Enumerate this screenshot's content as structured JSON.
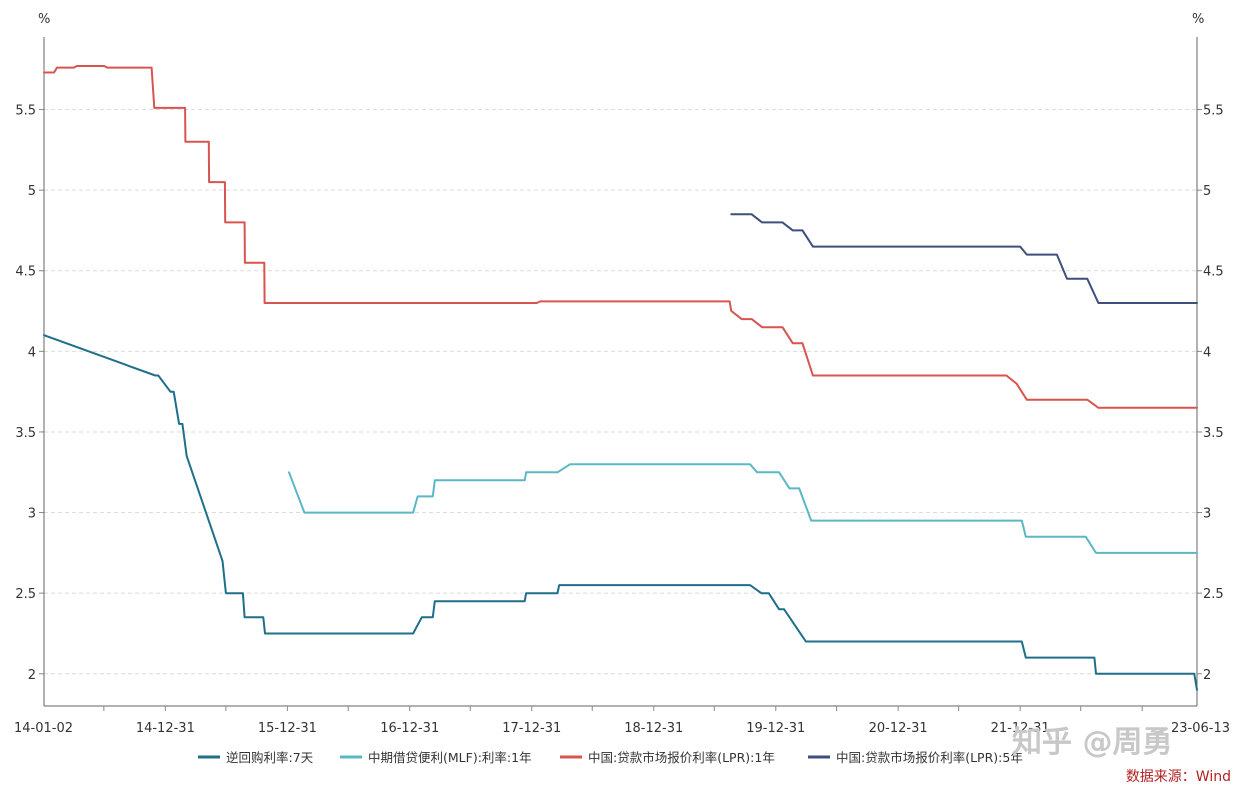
{
  "chart_data": {
    "type": "line",
    "title": "",
    "ylabel_left": "%",
    "ylabel_right": "%",
    "ylim": [
      1.8,
      5.95
    ],
    "y_ticks": [
      2,
      2.5,
      3,
      3.5,
      4,
      4.5,
      5,
      5.5
    ],
    "y_tick_labels": [
      "2",
      "2.5",
      "3",
      "3.5",
      "4",
      "4.5",
      "5",
      "5.5"
    ],
    "x_tick_labels": [
      "14-01-02",
      "14-12-31",
      "15-12-31",
      "16-12-31",
      "17-12-31",
      "18-12-31",
      "19-12-31",
      "20-12-31",
      "21-12-31",
      "23-06-13"
    ],
    "x_range": [
      "2014-01-02",
      "2023-06-13"
    ],
    "grid": "horizontal-dashed",
    "legend_position": "bottom",
    "series": [
      {
        "name": "逆回购利率:7天",
        "color": "#1f6f8b",
        "points": [
          [
            "2014-01-02",
            4.1
          ],
          [
            "2014-12-01",
            3.85
          ],
          [
            "2014-12-10",
            3.85
          ],
          [
            "2015-01-15",
            3.75
          ],
          [
            "2015-01-25",
            3.75
          ],
          [
            "2015-02-10",
            3.55
          ],
          [
            "2015-02-20",
            3.55
          ],
          [
            "2015-03-05",
            3.35
          ],
          [
            "2015-06-20",
            2.7
          ],
          [
            "2015-06-30",
            2.5
          ],
          [
            "2015-08-20",
            2.5
          ],
          [
            "2015-08-25",
            2.35
          ],
          [
            "2015-10-20",
            2.35
          ],
          [
            "2015-10-25",
            2.25
          ],
          [
            "2017-01-10",
            2.25
          ],
          [
            "2017-02-05",
            2.35
          ],
          [
            "2017-03-10",
            2.35
          ],
          [
            "2017-03-16",
            2.45
          ],
          [
            "2017-12-10",
            2.45
          ],
          [
            "2017-12-14",
            2.5
          ],
          [
            "2018-03-18",
            2.5
          ],
          [
            "2018-03-23",
            2.55
          ],
          [
            "2019-10-15",
            2.55
          ],
          [
            "2019-11-18",
            2.5
          ],
          [
            "2019-12-10",
            2.5
          ],
          [
            "2020-01-10",
            2.4
          ],
          [
            "2020-01-25",
            2.4
          ],
          [
            "2020-03-30",
            2.2
          ],
          [
            "2022-01-05",
            2.2
          ],
          [
            "2022-01-17",
            2.1
          ],
          [
            "2022-08-10",
            2.1
          ],
          [
            "2022-08-15",
            2.0
          ],
          [
            "2023-06-05",
            2.0
          ],
          [
            "2023-06-13",
            1.9
          ]
        ]
      },
      {
        "name": "中期借贷便利(MLF):利率:1年",
        "color": "#5ab8c4",
        "points": [
          [
            "2016-01-05",
            3.25
          ],
          [
            "2016-02-20",
            3.0
          ],
          [
            "2017-01-10",
            3.0
          ],
          [
            "2017-01-24",
            3.1
          ],
          [
            "2017-03-10",
            3.1
          ],
          [
            "2017-03-16",
            3.2
          ],
          [
            "2017-12-10",
            3.2
          ],
          [
            "2017-12-14",
            3.25
          ],
          [
            "2018-03-18",
            3.25
          ],
          [
            "2018-04-25",
            3.3
          ],
          [
            "2019-10-15",
            3.3
          ],
          [
            "2019-11-05",
            3.25
          ],
          [
            "2020-01-10",
            3.25
          ],
          [
            "2020-02-10",
            3.15
          ],
          [
            "2020-03-10",
            3.15
          ],
          [
            "2020-04-15",
            2.95
          ],
          [
            "2022-01-05",
            2.95
          ],
          [
            "2022-01-17",
            2.85
          ],
          [
            "2022-07-15",
            2.85
          ],
          [
            "2022-08-15",
            2.75
          ],
          [
            "2023-06-13",
            2.75
          ]
        ]
      },
      {
        "name": "中国:贷款市场报价利率(LPR):1年",
        "color": "#d9534f",
        "points": [
          [
            "2014-01-02",
            5.73
          ],
          [
            "2014-02-01",
            5.73
          ],
          [
            "2014-02-10",
            5.76
          ],
          [
            "2014-04-01",
            5.76
          ],
          [
            "2014-04-10",
            5.77
          ],
          [
            "2014-07-01",
            5.77
          ],
          [
            "2014-07-10",
            5.76
          ],
          [
            "2014-11-20",
            5.76
          ],
          [
            "2014-11-28",
            5.51
          ],
          [
            "2015-02-28",
            5.51
          ],
          [
            "2015-03-01",
            5.3
          ],
          [
            "2015-05-10",
            5.3
          ],
          [
            "2015-05-11",
            5.05
          ],
          [
            "2015-06-27",
            5.05
          ],
          [
            "2015-06-28",
            4.8
          ],
          [
            "2015-08-25",
            4.8
          ],
          [
            "2015-08-26",
            4.55
          ],
          [
            "2015-10-23",
            4.55
          ],
          [
            "2015-10-24",
            4.3
          ],
          [
            "2018-01-15",
            4.3
          ],
          [
            "2018-01-25",
            4.31
          ],
          [
            "2019-08-15",
            4.31
          ],
          [
            "2019-08-20",
            4.25
          ],
          [
            "2019-09-20",
            4.2
          ],
          [
            "2019-10-20",
            4.2
          ],
          [
            "2019-11-20",
            4.15
          ],
          [
            "2020-01-20",
            4.15
          ],
          [
            "2020-02-20",
            4.05
          ],
          [
            "2020-03-20",
            4.05
          ],
          [
            "2020-04-20",
            3.85
          ],
          [
            "2021-11-20",
            3.85
          ],
          [
            "2021-12-20",
            3.8
          ],
          [
            "2022-01-20",
            3.7
          ],
          [
            "2022-07-20",
            3.7
          ],
          [
            "2022-08-22",
            3.65
          ],
          [
            "2023-06-13",
            3.65
          ]
        ]
      },
      {
        "name": "中国:贷款市场报价利率(LPR):5年",
        "color": "#3d4f7c",
        "points": [
          [
            "2019-08-20",
            4.85
          ],
          [
            "2019-10-20",
            4.85
          ],
          [
            "2019-11-20",
            4.8
          ],
          [
            "2020-01-20",
            4.8
          ],
          [
            "2020-02-20",
            4.75
          ],
          [
            "2020-03-20",
            4.75
          ],
          [
            "2020-04-20",
            4.65
          ],
          [
            "2021-12-31",
            4.65
          ],
          [
            "2022-01-20",
            4.6
          ],
          [
            "2022-04-20",
            4.6
          ],
          [
            "2022-05-20",
            4.45
          ],
          [
            "2022-07-20",
            4.45
          ],
          [
            "2022-08-22",
            4.3
          ],
          [
            "2023-06-13",
            4.3
          ]
        ]
      }
    ],
    "watermark": "知乎 @周勇",
    "source_note": "数据来源：Wind"
  }
}
